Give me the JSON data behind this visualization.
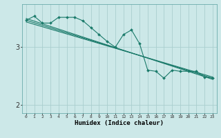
{
  "xlabel": "Humidex (Indice chaleur)",
  "ylabel": "",
  "background_color": "#cce8e8",
  "grid_color": "#aacece",
  "line_color": "#1a7a6a",
  "xlim": [
    -0.5,
    23.5
  ],
  "ylim": [
    1.85,
    3.75
  ],
  "yticks": [
    2,
    3
  ],
  "xticks": [
    0,
    1,
    2,
    3,
    4,
    5,
    6,
    7,
    8,
    9,
    10,
    11,
    12,
    13,
    14,
    15,
    16,
    17,
    18,
    19,
    20,
    21,
    22,
    23
  ],
  "series_main": {
    "x": [
      0,
      1,
      2,
      3,
      4,
      5,
      6,
      7,
      8,
      9,
      10,
      11,
      12,
      13,
      14,
      15,
      16,
      17,
      18,
      19,
      20,
      21,
      22,
      23
    ],
    "y": [
      3.47,
      3.54,
      3.42,
      3.42,
      3.52,
      3.52,
      3.52,
      3.46,
      3.34,
      3.22,
      3.1,
      3.0,
      3.22,
      3.3,
      3.06,
      2.6,
      2.58,
      2.46,
      2.6,
      2.58,
      2.58,
      2.58,
      2.48,
      2.46
    ]
  },
  "trend_lines": [
    {
      "x": [
        0,
        23
      ],
      "y": [
        3.5,
        2.44
      ]
    },
    {
      "x": [
        0,
        23
      ],
      "y": [
        3.47,
        2.46
      ]
    },
    {
      "x": [
        0,
        23
      ],
      "y": [
        3.44,
        2.48
      ]
    }
  ],
  "figsize": [
    3.2,
    2.0
  ],
  "dpi": 100
}
